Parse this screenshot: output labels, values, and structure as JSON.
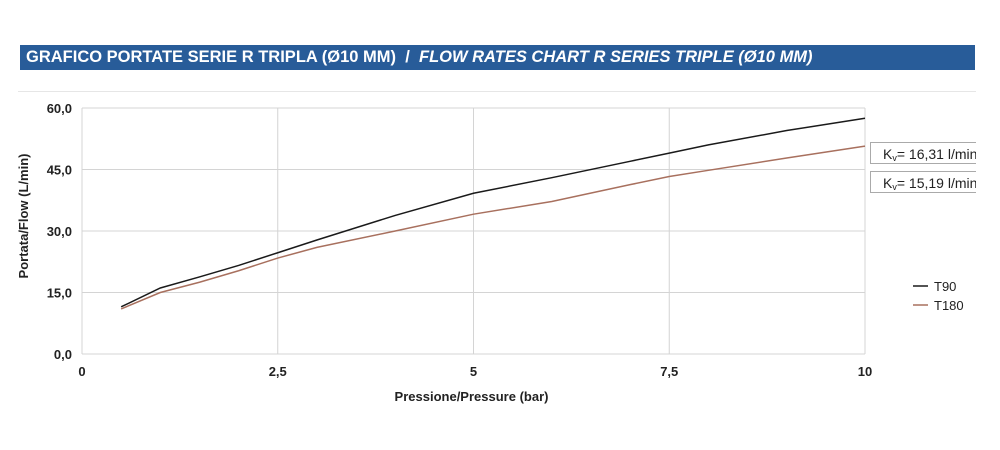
{
  "header": {
    "title_it": "GRAFICO PORTATE SERIE R TRIPLA (Ø10 MM)",
    "separator": "/",
    "title_en": "FLOW RATES CHART R SERIES TRIPLE (Ø10 MM)"
  },
  "chart_data": {
    "type": "line",
    "xlabel": "Pressione/Pressure (bar)",
    "ylabel": "Portata/Flow (L/min)",
    "xlim": [
      0,
      10
    ],
    "ylim": [
      0,
      60
    ],
    "xticks": [
      "0",
      "2,5",
      "5",
      "7,5",
      "10"
    ],
    "yticks": [
      "0,0",
      "15,0",
      "30,0",
      "45,0",
      "60,0"
    ],
    "grid": true,
    "legend": "right",
    "series": [
      {
        "name": "T90",
        "color": "#1a1a1a",
        "x": [
          0.5,
          1,
          1.5,
          2,
          2.5,
          3,
          4,
          5,
          6,
          7,
          7.5,
          8,
          9,
          10
        ],
        "y": [
          11.5,
          16.1,
          18.8,
          21.6,
          24.7,
          27.8,
          33.8,
          39.2,
          43,
          47,
          49,
          51,
          54.5,
          57.5
        ],
        "kv": "K",
        "kv_sub": "v",
        "kv_text": "= 16,31 l/min"
      },
      {
        "name": "T180",
        "color": "#a8705e",
        "x": [
          0.5,
          1,
          1.5,
          2,
          2.5,
          3,
          4,
          5,
          6,
          7,
          7.5,
          8,
          9,
          10
        ],
        "y": [
          11,
          15,
          17.5,
          20.3,
          23.4,
          26,
          30,
          34.1,
          37.2,
          41.3,
          43.3,
          44.8,
          47.8,
          50.7
        ],
        "kv": "K",
        "kv_sub": "v",
        "kv_text": "= 15,19 l/min"
      }
    ]
  }
}
